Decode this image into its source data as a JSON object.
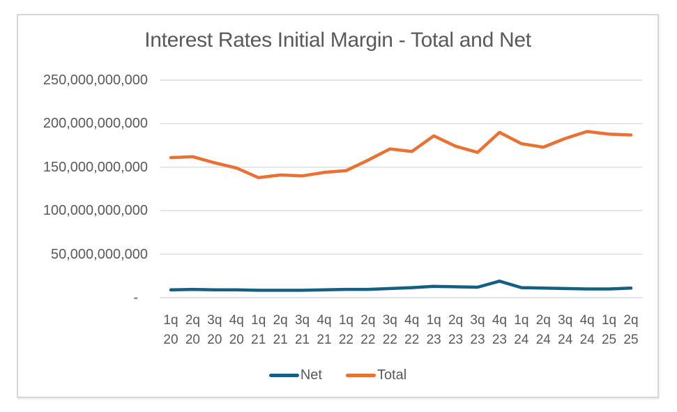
{
  "chart_data": {
    "type": "line",
    "title": "Interest Rates Initial Margin - Total and Net",
    "categories": [
      "1q 20",
      "2q 20",
      "3q 20",
      "4q 20",
      "1q 21",
      "2q 21",
      "3q 21",
      "4q 21",
      "1q 22",
      "2q 22",
      "3q 22",
      "4q 22",
      "1q 23",
      "2q 23",
      "3q 23",
      "4q 23",
      "1q 24",
      "2q 24",
      "3q 24",
      "4q 24",
      "1q 25",
      "2q 25"
    ],
    "series": [
      {
        "name": "Net",
        "color": "#156082",
        "values": [
          9000000000,
          9500000000,
          9000000000,
          9000000000,
          8500000000,
          8500000000,
          8500000000,
          9000000000,
          9500000000,
          9500000000,
          10500000000,
          11500000000,
          13000000000,
          12500000000,
          12000000000,
          19000000000,
          11500000000,
          11000000000,
          10500000000,
          10000000000,
          10000000000,
          11000000000
        ]
      },
      {
        "name": "Total",
        "color": "#E97132",
        "values": [
          161000000000,
          162000000000,
          155000000000,
          149000000000,
          138000000000,
          141000000000,
          140000000000,
          144000000000,
          146000000000,
          158000000000,
          171000000000,
          168000000000,
          186000000000,
          174000000000,
          167000000000,
          190000000000,
          177000000000,
          173000000000,
          183000000000,
          191000000000,
          188000000000,
          187000000000
        ]
      }
    ],
    "ylim": [
      0,
      250000000000
    ],
    "y_ticks": [
      {
        "label": "250,000,000,000",
        "value": 250000000000
      },
      {
        "label": "200,000,000,000",
        "value": 200000000000
      },
      {
        "label": "150,000,000,000",
        "value": 150000000000
      },
      {
        "label": "100,000,000,000",
        "value": 100000000000
      },
      {
        "label": "50,000,000,000",
        "value": 50000000000
      },
      {
        "label": "-",
        "value": 0
      }
    ],
    "grid": true,
    "legend_position": "bottom"
  },
  "colors": {
    "net_series": "#156082",
    "total_series": "#E97132",
    "gridline": "#D9D9D9",
    "text": "#595959",
    "frame_border": "#D6D6D6",
    "background": "#FFFFFF"
  }
}
